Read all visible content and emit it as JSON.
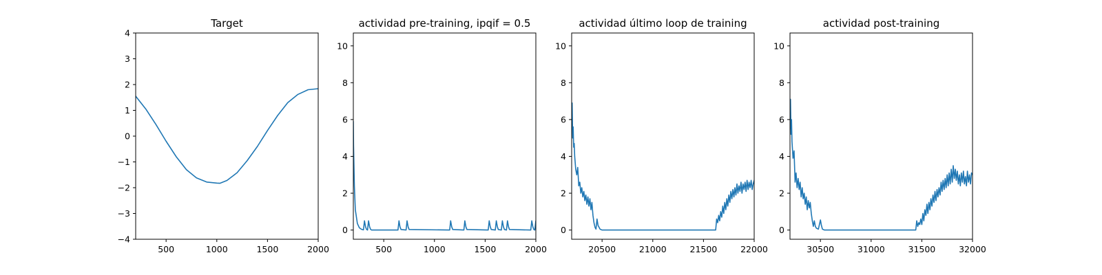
{
  "figure": {
    "background": "#ffffff",
    "line_color": "#1f77b4"
  },
  "chart_data": [
    {
      "type": "line",
      "title": "Target",
      "xlabel": "",
      "ylabel": "",
      "xlim": [
        200,
        2000
      ],
      "ylim": [
        -4,
        4
      ],
      "xticks": [
        500,
        1000,
        1500,
        2000
      ],
      "yticks": [
        -4,
        -3,
        -2,
        -1,
        0,
        1,
        2,
        3,
        4
      ],
      "grid": false,
      "series": [
        {
          "x": [
            200,
            300,
            400,
            500,
            600,
            700,
            800,
            900,
            1000,
            1030,
            1100,
            1200,
            1300,
            1400,
            1500,
            1600,
            1700,
            1800,
            1900,
            2000
          ],
          "y": [
            1.55,
            1.05,
            0.45,
            -0.2,
            -0.8,
            -1.3,
            -1.62,
            -1.78,
            -1.82,
            -1.83,
            -1.72,
            -1.42,
            -0.95,
            -0.4,
            0.22,
            0.8,
            1.3,
            1.62,
            1.8,
            1.84
          ]
        }
      ]
    },
    {
      "type": "line",
      "title": "actividad pre-training, ipqif = 0.5",
      "xlabel": "",
      "ylabel": "",
      "xlim": [
        200,
        2000
      ],
      "ylim": [
        -0.5,
        10.7
      ],
      "xticks": [
        500,
        1000,
        1500,
        2000
      ],
      "yticks": [
        0,
        2,
        4,
        6,
        8,
        10
      ],
      "grid": false,
      "series": [
        {
          "x": [
            200,
            202,
            210,
            220,
            240,
            260,
            280,
            300,
            310,
            320,
            330,
            340,
            350,
            360,
            370,
            380,
            640,
            650,
            660,
            670,
            720,
            730,
            740,
            750,
            1150,
            1160,
            1170,
            1180,
            1290,
            1300,
            1310,
            1320,
            1530,
            1540,
            1550,
            1560,
            1600,
            1610,
            1620,
            1630,
            1660,
            1670,
            1680,
            1690,
            1710,
            1720,
            1730,
            1740,
            1950,
            1960,
            1970,
            1980,
            1990,
            2000
          ],
          "y": [
            5.9,
            4.6,
            2.4,
            1.1,
            0.35,
            0.12,
            0.04,
            0.01,
            0.5,
            0.18,
            0.04,
            0.0,
            0.5,
            0.18,
            0.04,
            0.0,
            0.0,
            0.5,
            0.18,
            0.03,
            0.0,
            0.5,
            0.18,
            0.03,
            0.0,
            0.5,
            0.18,
            0.03,
            0.0,
            0.5,
            0.18,
            0.03,
            0.0,
            0.5,
            0.18,
            0.03,
            0.0,
            0.5,
            0.18,
            0.03,
            0.0,
            0.5,
            0.18,
            0.03,
            0.0,
            0.5,
            0.18,
            0.03,
            0.0,
            0.5,
            0.18,
            0.03,
            0.0,
            0.5
          ]
        }
      ]
    },
    {
      "type": "line",
      "title": "actividad último loop de training",
      "xlabel": "",
      "ylabel": "",
      "xlim": [
        20200,
        22000
      ],
      "ylim": [
        -0.5,
        10.7
      ],
      "xticks": [
        20500,
        21000,
        21500,
        22000
      ],
      "yticks": [
        0,
        2,
        4,
        6,
        8,
        10
      ],
      "grid": false,
      "series": [
        {
          "x": [
            20200,
            20205,
            20210,
            20215,
            20220,
            20225,
            20230,
            20240,
            20250,
            20260,
            20270,
            20280,
            20290,
            20300,
            20310,
            20320,
            20330,
            20340,
            20350,
            20360,
            20370,
            20380,
            20390,
            20400,
            20410,
            20420,
            20430,
            20440,
            20450,
            20460,
            20480,
            20500,
            21000,
            21600,
            21620,
            21625,
            21630,
            21640,
            21650,
            21660,
            21670,
            21680,
            21690,
            21700,
            21710,
            21720,
            21730,
            21740,
            21750,
            21760,
            21770,
            21780,
            21790,
            21800,
            21810,
            21820,
            21830,
            21840,
            21850,
            21860,
            21870,
            21880,
            21890,
            21900,
            21910,
            21920,
            21930,
            21940,
            21950,
            21960,
            21970,
            21980,
            21990,
            22000
          ],
          "y": [
            5.5,
            6.9,
            5.0,
            5.6,
            4.5,
            4.7,
            4.0,
            3.3,
            3.0,
            3.4,
            2.4,
            2.6,
            2.0,
            2.3,
            1.8,
            2.1,
            1.6,
            1.9,
            1.4,
            1.8,
            1.3,
            1.7,
            1.1,
            1.5,
            0.8,
            0.4,
            0.15,
            0.05,
            0.6,
            0.25,
            0.05,
            0.0,
            0.0,
            0.0,
            0.0,
            0.3,
            0.6,
            0.4,
            0.8,
            0.5,
            1.0,
            0.7,
            1.3,
            0.9,
            1.5,
            1.1,
            1.7,
            1.3,
            1.9,
            1.5,
            2.1,
            1.7,
            2.2,
            1.8,
            2.3,
            1.9,
            2.5,
            2.0,
            2.4,
            2.1,
            2.6,
            2.0,
            2.5,
            2.2,
            2.6,
            2.1,
            2.7,
            2.2,
            2.6,
            2.3,
            2.7,
            2.2,
            2.5,
            2.7
          ]
        }
      ]
    },
    {
      "type": "line",
      "title": "actividad post-training",
      "xlabel": "",
      "ylabel": "",
      "xlim": [
        30200,
        32000
      ],
      "ylim": [
        -0.5,
        10.7
      ],
      "xticks": [
        30500,
        31000,
        31500,
        32000
      ],
      "yticks": [
        0,
        2,
        4,
        6,
        8,
        10
      ],
      "grid": false,
      "series": [
        {
          "x": [
            30200,
            30205,
            30210,
            30215,
            30220,
            30230,
            30240,
            30250,
            30260,
            30270,
            30280,
            30290,
            30300,
            30310,
            30320,
            30330,
            30340,
            30350,
            30360,
            30370,
            30380,
            30390,
            30400,
            30410,
            30420,
            30430,
            30440,
            30450,
            30460,
            30480,
            30500,
            30510,
            30520,
            30540,
            30560,
            31000,
            31440,
            31450,
            31460,
            31470,
            31480,
            31490,
            31500,
            31510,
            31520,
            31530,
            31540,
            31550,
            31560,
            31570,
            31580,
            31590,
            31600,
            31610,
            31620,
            31630,
            31640,
            31650,
            31660,
            31670,
            31680,
            31690,
            31700,
            31710,
            31720,
            31730,
            31740,
            31750,
            31760,
            31770,
            31780,
            31790,
            31800,
            31810,
            31820,
            31830,
            31840,
            31850,
            31860,
            31870,
            31880,
            31890,
            31900,
            31910,
            31920,
            31930,
            31940,
            31950,
            31960,
            31970,
            31980,
            31990,
            32000
          ],
          "y": [
            5.5,
            7.1,
            5.2,
            6.0,
            4.8,
            3.9,
            4.3,
            2.6,
            3.1,
            2.3,
            2.8,
            2.2,
            2.6,
            1.8,
            2.3,
            1.7,
            2.0,
            1.4,
            1.8,
            1.1,
            1.6,
            1.2,
            1.5,
            0.9,
            0.5,
            0.2,
            0.5,
            0.2,
            0.1,
            0.05,
            0.55,
            0.25,
            0.05,
            0.0,
            0.0,
            0.0,
            0.0,
            0.5,
            0.2,
            0.4,
            0.3,
            0.6,
            0.3,
            0.9,
            0.5,
            1.1,
            0.8,
            1.4,
            0.9,
            1.5,
            1.1,
            1.7,
            1.3,
            1.9,
            1.5,
            2.1,
            1.6,
            2.2,
            1.8,
            2.3,
            1.9,
            2.6,
            2.1,
            2.7,
            2.2,
            2.8,
            2.3,
            3.0,
            2.4,
            3.1,
            2.5,
            3.3,
            2.6,
            3.5,
            2.8,
            3.3,
            2.7,
            3.2,
            2.5,
            3.0,
            2.4,
            3.1,
            2.6,
            3.2,
            2.5,
            2.9,
            2.4,
            3.2,
            2.6,
            3.0,
            2.5,
            3.1,
            3.0
          ]
        }
      ]
    }
  ]
}
